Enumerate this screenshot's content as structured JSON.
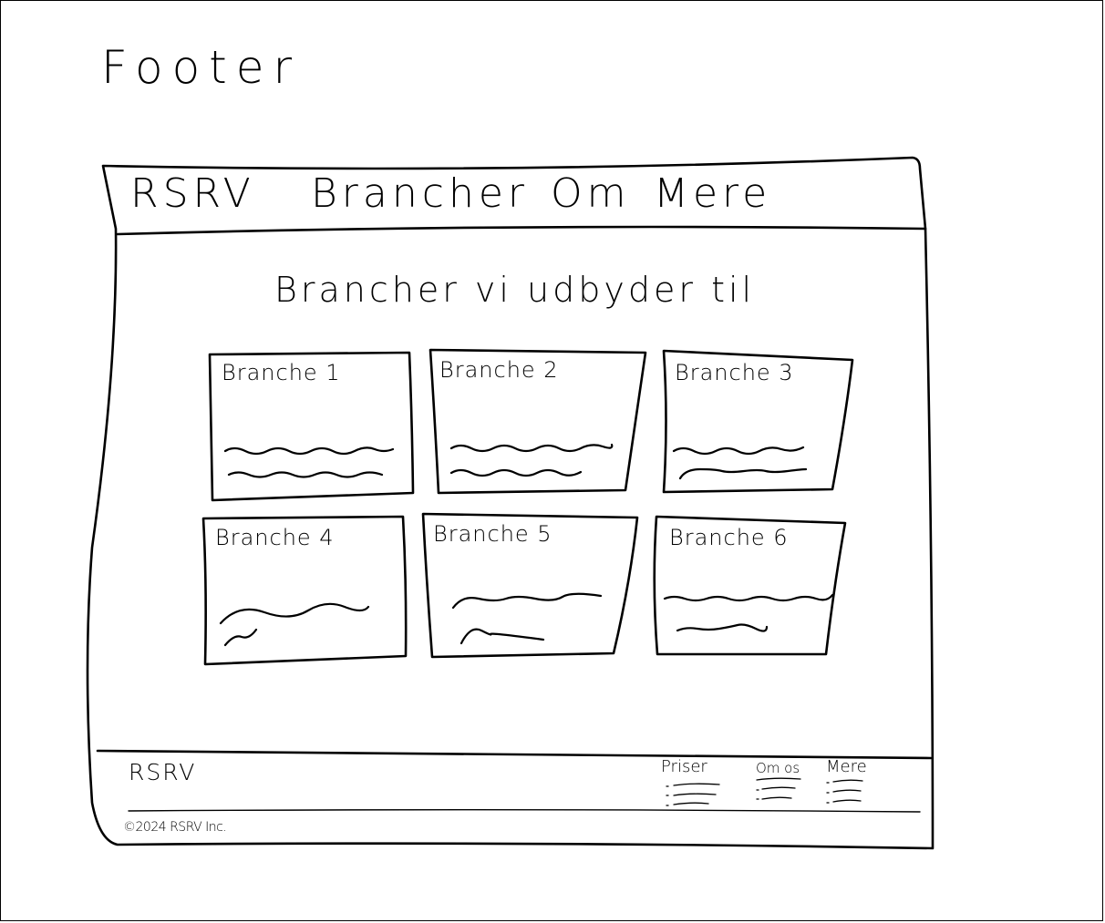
{
  "sheet": {
    "title": "Footer"
  },
  "nav": {
    "logo": "RSRV",
    "items": [
      "Brancher",
      "Om",
      "Mere"
    ]
  },
  "main": {
    "heading": "Brancher vi udbyder til",
    "cards": [
      {
        "title": "Branche 1"
      },
      {
        "title": "Branche 2"
      },
      {
        "title": "Branche 3"
      },
      {
        "title": "Branche 4"
      },
      {
        "title": "Branche 5"
      },
      {
        "title": "Branche 6"
      }
    ]
  },
  "footer": {
    "logo": "RSRV",
    "columns": [
      {
        "heading": "Priser"
      },
      {
        "heading": "Om os"
      },
      {
        "heading": "Mere"
      }
    ],
    "copyright": "©2024 RSRV Inc."
  }
}
